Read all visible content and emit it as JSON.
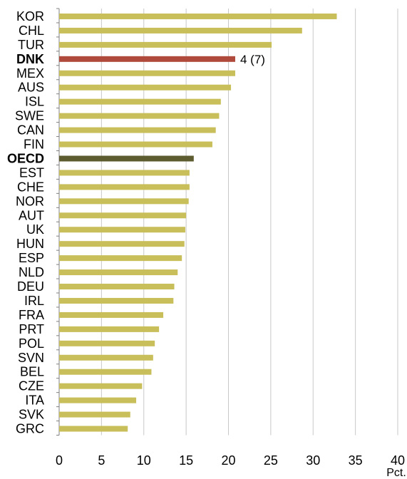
{
  "chart_data": {
    "type": "bar",
    "orientation": "horizontal",
    "categories": [
      "KOR",
      "CHL",
      "TUR",
      "DNK",
      "MEX",
      "AUS",
      "ISL",
      "SWE",
      "CAN",
      "FIN",
      "OECD",
      "EST",
      "CHE",
      "NOR",
      "AUT",
      "UK",
      "HUN",
      "ESP",
      "NLD",
      "DEU",
      "IRL",
      "FRA",
      "PRT",
      "POL",
      "SVN",
      "BEL",
      "CZE",
      "ITA",
      "SVK",
      "GRC"
    ],
    "values": [
      32.8,
      28.7,
      25.1,
      20.8,
      20.8,
      20.3,
      19.1,
      18.9,
      18.5,
      18.1,
      15.9,
      15.4,
      15.4,
      15.3,
      15.0,
      14.9,
      14.8,
      14.5,
      14.0,
      13.6,
      13.5,
      12.3,
      11.8,
      11.3,
      11.1,
      10.9,
      9.8,
      9.1,
      8.4,
      8.1
    ],
    "highlight": {
      "DNK": "#b04a3c",
      "OECD": "#5c5c30"
    },
    "bold_categories": [
      "DNK",
      "OECD"
    ],
    "default_color": "#c8be5a",
    "annotations": [
      {
        "category": "DNK",
        "text": "4 (7)"
      }
    ],
    "xticks": [
      "0",
      "5",
      "10",
      "15",
      "20",
      "25",
      "30",
      "35",
      "40"
    ],
    "xlim": [
      0,
      40
    ],
    "xunit": "Pct.",
    "grid": "vertical"
  }
}
